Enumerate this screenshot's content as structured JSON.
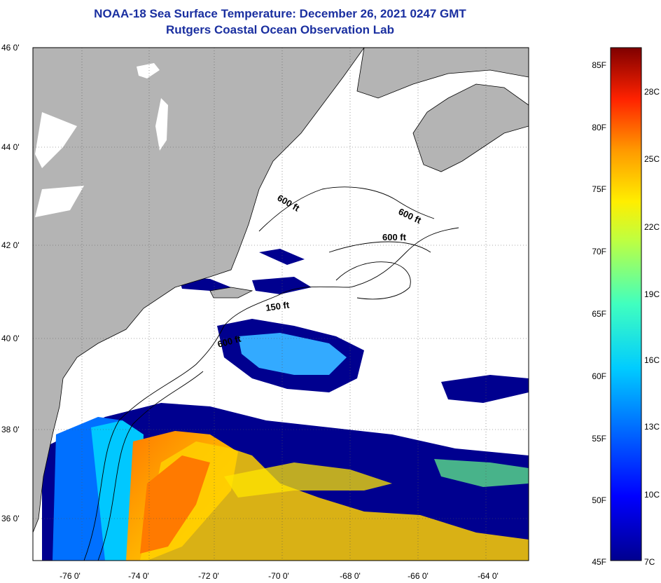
{
  "header": {
    "title": "NOAA-18 Sea Surface Temperature:  December 26, 2021 0247 GMT",
    "subtitle": "Rutgers Coastal Ocean Observation Lab"
  },
  "axes": {
    "lat_labels": [
      "46 0'",
      "44 0'",
      "42 0'",
      "40 0'",
      "38 0'",
      "36 0'"
    ],
    "lon_labels": [
      "-76 0'",
      "-74 0'",
      "-72 0'",
      "-70 0'",
      "-68 0'",
      "-66 0'",
      "-64 0'"
    ]
  },
  "contour_labels": [
    "600 ft",
    "600 ft",
    "600 ft",
    "150 ft",
    "600 ft"
  ],
  "colorbar": {
    "fahrenheit": [
      "85F",
      "80F",
      "75F",
      "70F",
      "65F",
      "60F",
      "55F",
      "50F",
      "45F"
    ],
    "celsius": [
      "28C",
      "25C",
      "22C",
      "19C",
      "16C",
      "13C",
      "10C",
      "7C"
    ]
  },
  "colors": {
    "title": "#1a2fa0",
    "land": "#b4b4b4",
    "water_nodata": "#ffffff",
    "cold": "#00008f",
    "warm": "#ff6a00"
  }
}
